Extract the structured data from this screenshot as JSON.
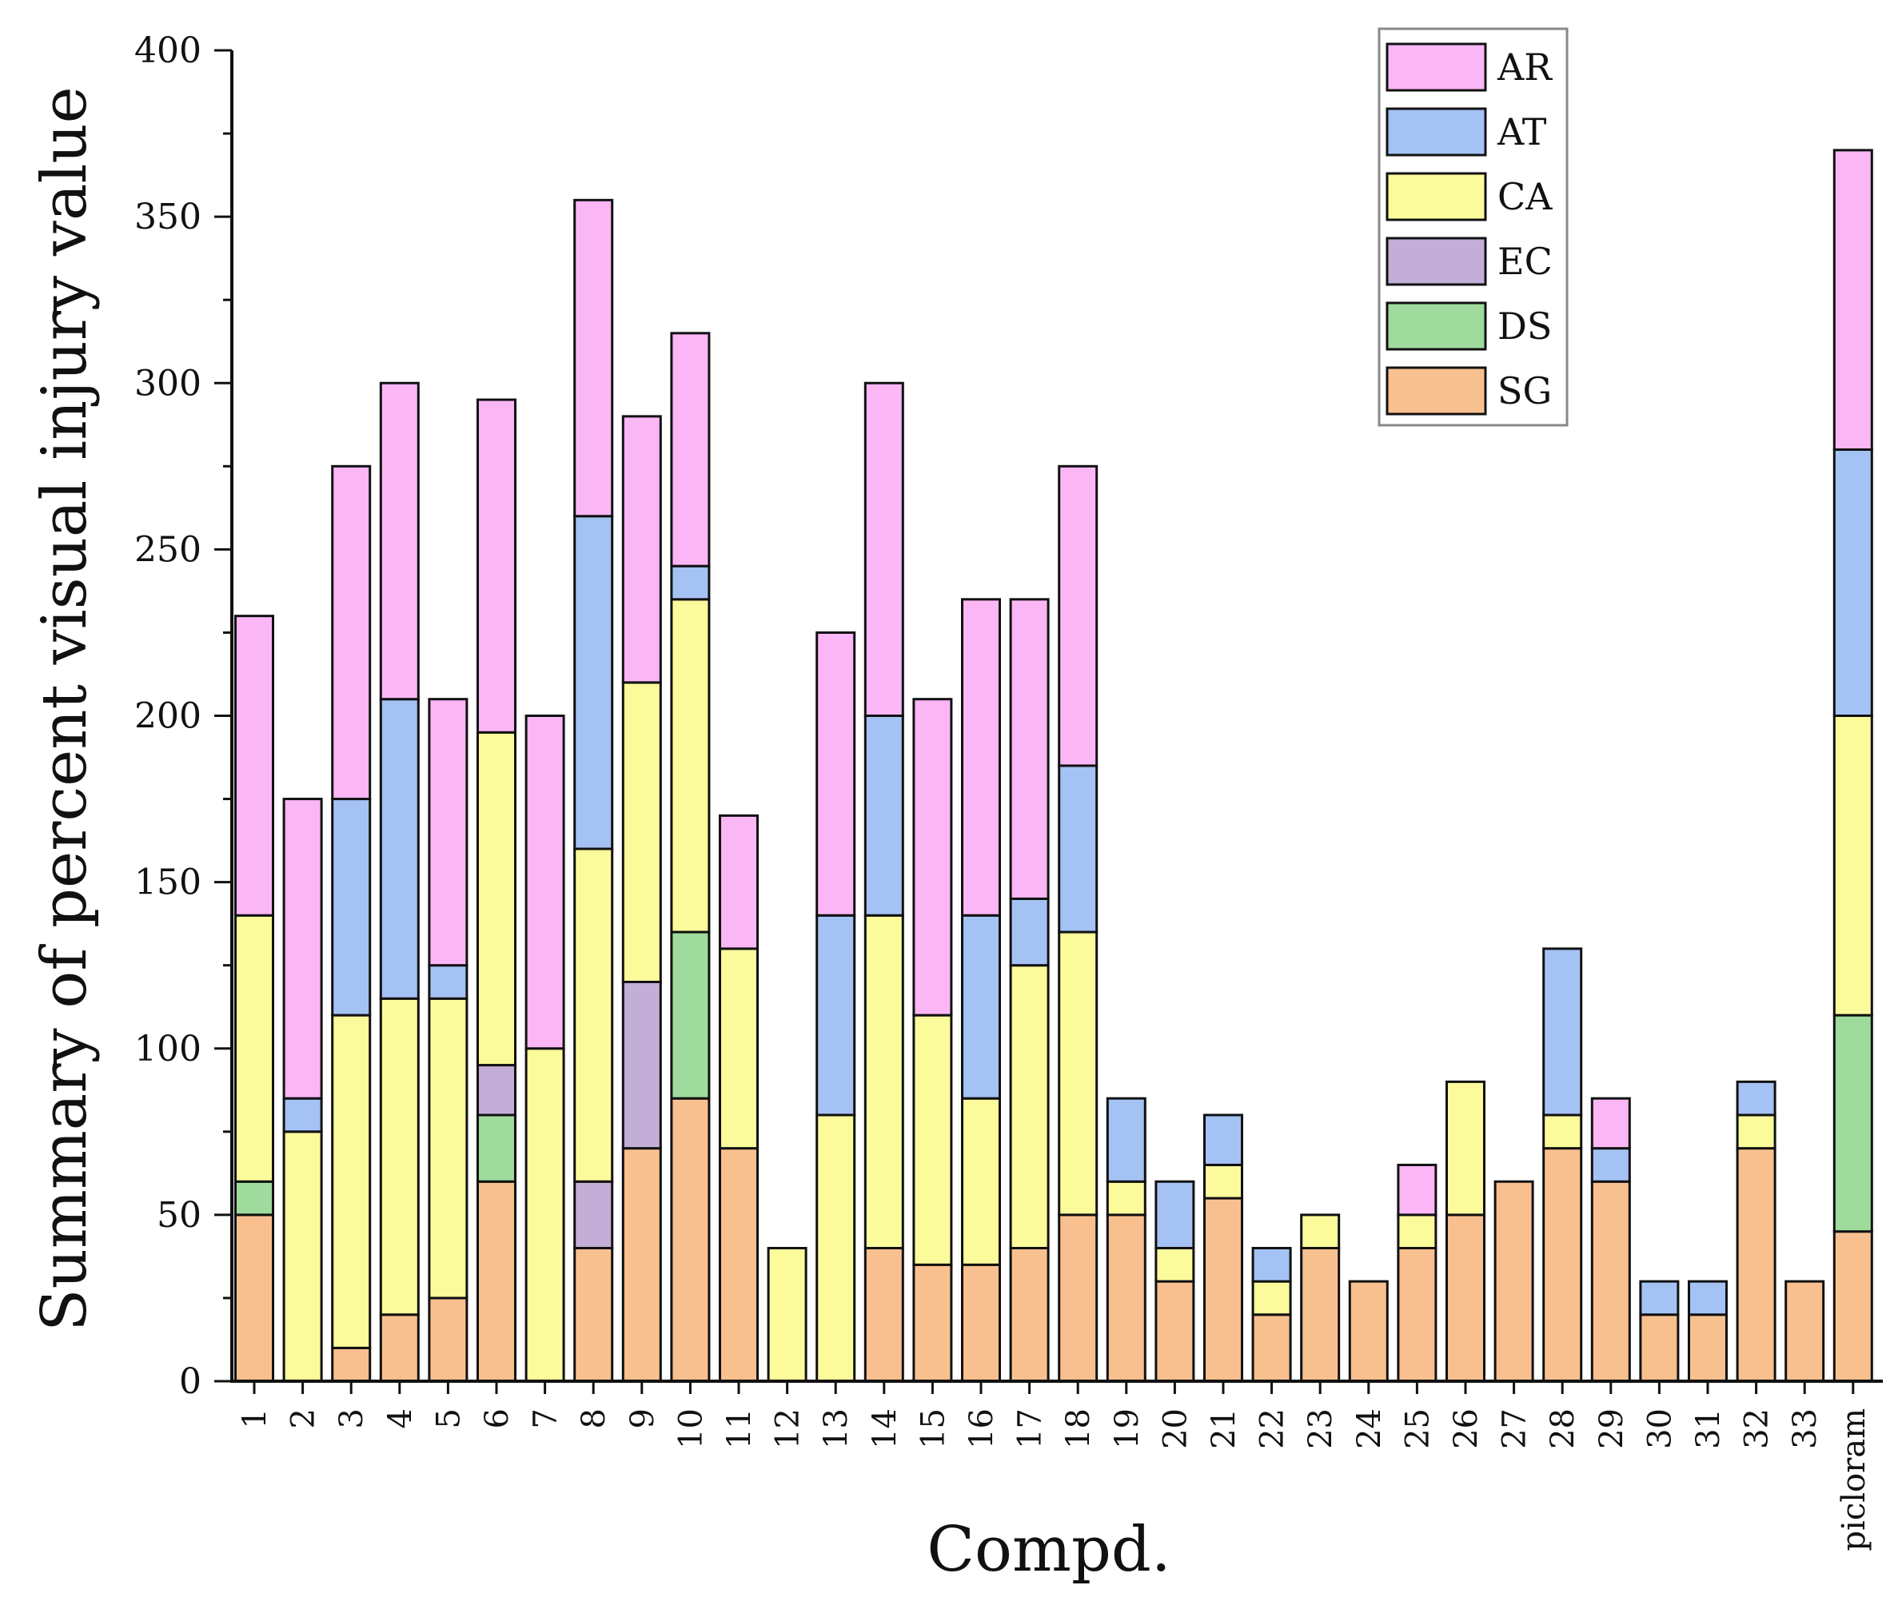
{
  "chart_data": {
    "type": "bar",
    "stacked": true,
    "title": "",
    "xlabel": "Compd.",
    "ylabel": "Summary of percent visual injury value",
    "ylim": [
      0,
      400
    ],
    "yticks": [
      0,
      50,
      100,
      150,
      200,
      250,
      300,
      350,
      400
    ],
    "grid": false,
    "legend_position": "top-right",
    "categories": [
      "1",
      "2",
      "3",
      "4",
      "5",
      "6",
      "7",
      "8",
      "9",
      "10",
      "11",
      "12",
      "13",
      "14",
      "15",
      "16",
      "17",
      "18",
      "19",
      "20",
      "21",
      "22",
      "23",
      "24",
      "25",
      "26",
      "27",
      "28",
      "29",
      "30",
      "31",
      "32",
      "33",
      "picloram"
    ],
    "series": [
      {
        "name": "SG",
        "color": "#f9c08f",
        "values": [
          50,
          0,
          10,
          20,
          25,
          60,
          0,
          40,
          70,
          85,
          70,
          0,
          0,
          40,
          35,
          35,
          40,
          50,
          50,
          30,
          55,
          20,
          40,
          30,
          40,
          50,
          60,
          70,
          60,
          20,
          20,
          70,
          30,
          45
        ]
      },
      {
        "name": "DS",
        "color": "#9edb9c",
        "values": [
          10,
          0,
          0,
          0,
          0,
          20,
          0,
          0,
          0,
          50,
          0,
          0,
          0,
          0,
          0,
          0,
          0,
          0,
          0,
          0,
          0,
          0,
          0,
          0,
          0,
          0,
          0,
          0,
          0,
          0,
          0,
          0,
          0,
          65
        ]
      },
      {
        "name": "EC",
        "color": "#c2aed6",
        "values": [
          0,
          0,
          0,
          0,
          0,
          15,
          0,
          20,
          50,
          0,
          0,
          0,
          0,
          0,
          0,
          0,
          0,
          0,
          0,
          0,
          0,
          0,
          0,
          0,
          0,
          0,
          0,
          0,
          0,
          0,
          0,
          0,
          0,
          0
        ]
      },
      {
        "name": "CA",
        "color": "#fbfb9c",
        "values": [
          80,
          75,
          100,
          95,
          90,
          100,
          100,
          100,
          90,
          100,
          60,
          40,
          80,
          100,
          75,
          50,
          85,
          85,
          10,
          10,
          10,
          10,
          10,
          0,
          10,
          40,
          0,
          10,
          0,
          0,
          0,
          10,
          0,
          90
        ]
      },
      {
        "name": "AT",
        "color": "#a4c2f4",
        "values": [
          0,
          10,
          65,
          90,
          10,
          0,
          0,
          100,
          0,
          10,
          0,
          0,
          60,
          60,
          0,
          55,
          20,
          50,
          25,
          20,
          15,
          10,
          0,
          0,
          0,
          0,
          0,
          50,
          10,
          10,
          10,
          10,
          0,
          80
        ]
      },
      {
        "name": "AR",
        "color": "#fab6f5",
        "values": [
          90,
          90,
          100,
          95,
          80,
          100,
          100,
          95,
          80,
          70,
          40,
          0,
          85,
          100,
          95,
          95,
          90,
          90,
          0,
          0,
          0,
          0,
          0,
          0,
          15,
          0,
          0,
          0,
          15,
          0,
          0,
          0,
          0,
          90
        ]
      }
    ],
    "legend": [
      "AR",
      "AT",
      "CA",
      "EC",
      "DS",
      "SG"
    ]
  },
  "colors": {
    "bar_stroke": "#111111",
    "axis": "#111111",
    "legend_border": "#888888"
  }
}
